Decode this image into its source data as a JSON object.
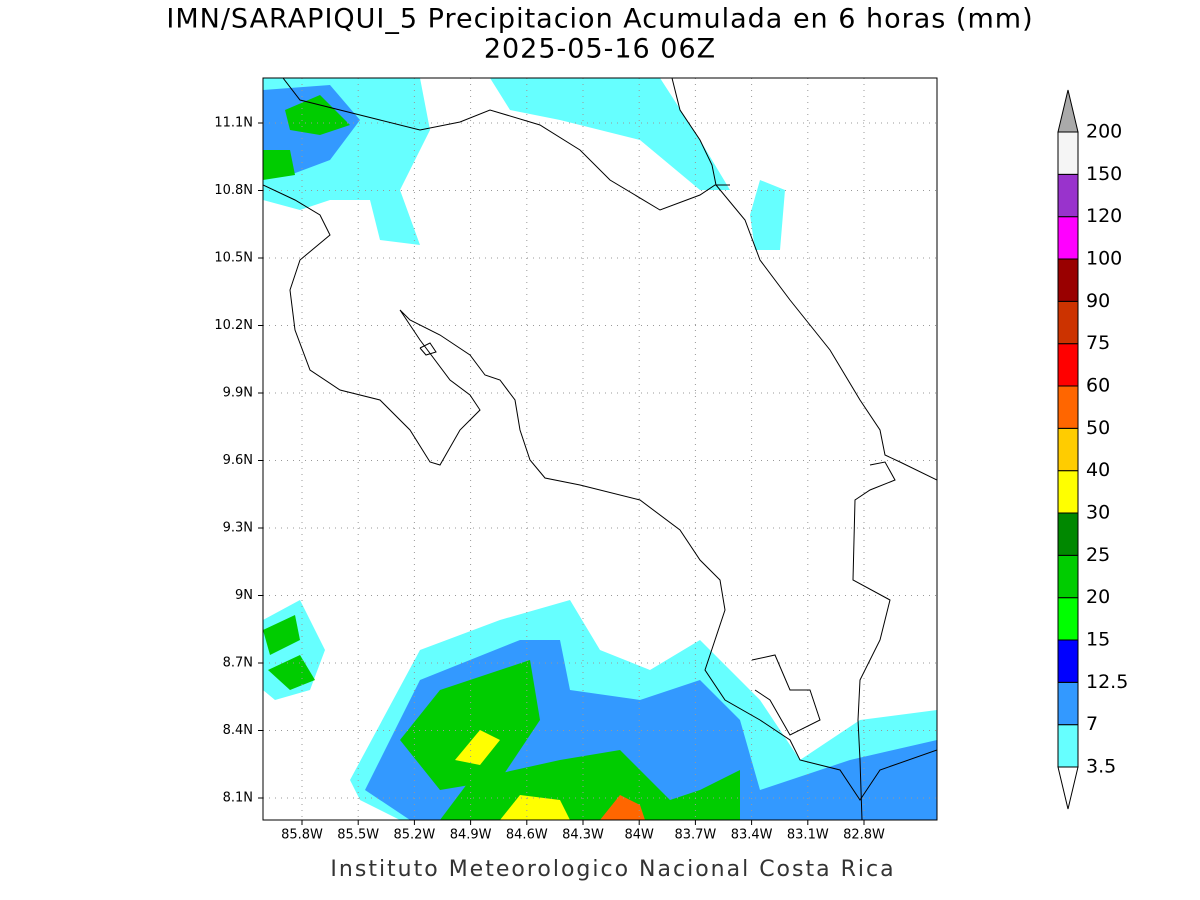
{
  "title": "IMN/SARAPIQUI_5 Precipitacion Acumulada en 6 horas (mm)",
  "subtitle": "2025-05-16 06Z",
  "lat_labels": [
    "11.1N",
    "10.8N",
    "10.5N",
    "10.2N",
    "9.9N",
    "9.6N",
    "9.3N",
    "9N",
    "8.7N",
    "8.4N",
    "8.1N"
  ],
  "lon_labels": [
    "85.8W",
    "85.5W",
    "85.2W",
    "84.9W",
    "84.6W",
    "84.3W",
    "84W",
    "83.7W",
    "83.4W",
    "83.1W",
    "82.8W"
  ],
  "colorbar": {
    "levels": [
      3.5,
      7,
      12.5,
      15,
      20,
      25,
      30,
      40,
      50,
      60,
      75,
      90,
      100,
      120,
      150,
      200
    ],
    "colors": [
      "#66ffff",
      "#3399ff",
      "#0000ff",
      "#00ff00",
      "#00cc00",
      "#008800",
      "#ffff00",
      "#ffcc00",
      "#ff6600",
      "#ff0000",
      "#cc3300",
      "#990000",
      "#ff00ff",
      "#9933cc",
      "#f5f5f5"
    ],
    "below_color": "#ffffff",
    "above_color": "#aaaaaa"
  },
  "footer": "Instituto Meteorologico Nacional Costa Rica"
}
